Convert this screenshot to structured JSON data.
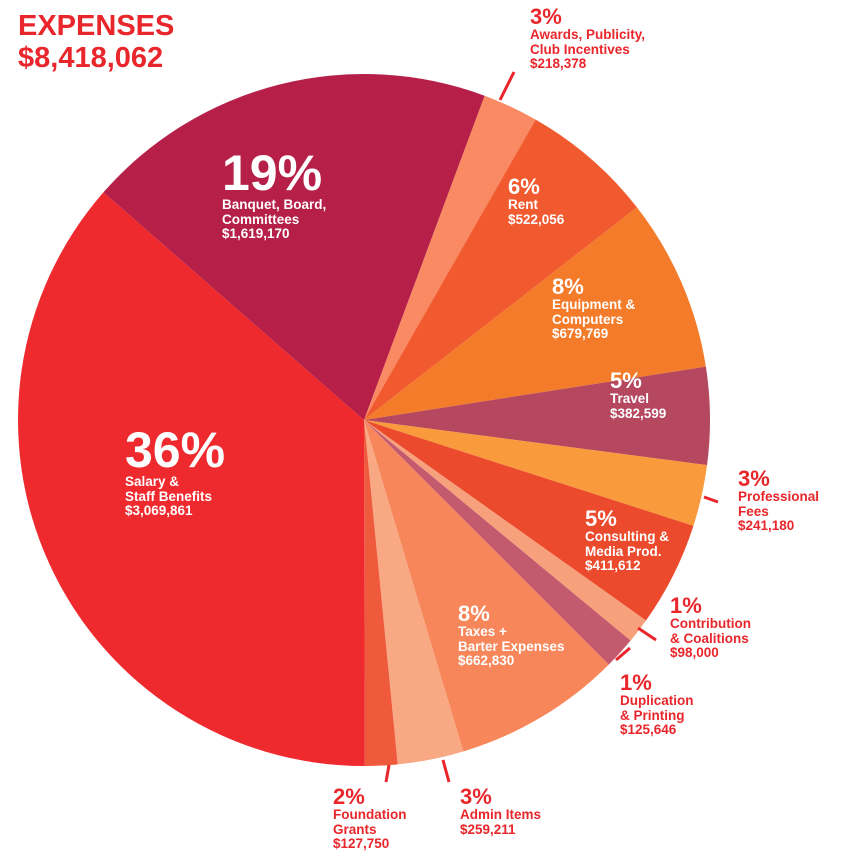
{
  "chart_data": {
    "type": "pie",
    "title": "EXPENSES",
    "subtitle": "$8,418,062",
    "categories": [
      "Awards, Publicity,\nClub Incentives",
      "Rent",
      "Equipment &\nComputers",
      "Travel",
      "Professional\nFees",
      "Consulting &\nMedia Prod.",
      "Contribution\n& Coalitions",
      "Duplication\n& Printing",
      "Taxes +\nBarter Expenses",
      "Admin Items",
      "Foundation\nGrants",
      "Salary &\nStaff Benefits",
      "Banquet, Board,\nCommittees"
    ],
    "values": [
      218378,
      522056,
      679769,
      382599,
      241180,
      411612,
      98000,
      125646,
      662830,
      259211,
      127750,
      3069861,
      1619170
    ],
    "value_labels": [
      "$218,378",
      "$522,056",
      "$679,769",
      "$382,599",
      "$241,180",
      "$411,612",
      "$98,000",
      "$125,646",
      "$662,830",
      "$259,211",
      "$127,750",
      "$3,069,861",
      "$1,619,170"
    ],
    "percent_labels": [
      "3%",
      "6%",
      "8%",
      "5%",
      "3%",
      "5%",
      "1%",
      "1%",
      "8%",
      "3%",
      "2%",
      "36%",
      "19%"
    ],
    "colors": [
      "#f98a63",
      "#f15a2e",
      "#f47b2a",
      "#b5475f",
      "#f99a3d",
      "#ec4a2c",
      "#f7a07c",
      "#c45a6e",
      "#f7875a",
      "#f9a884",
      "#ef5a3c",
      "#ee2a2e",
      "#b51f48"
    ]
  }
}
